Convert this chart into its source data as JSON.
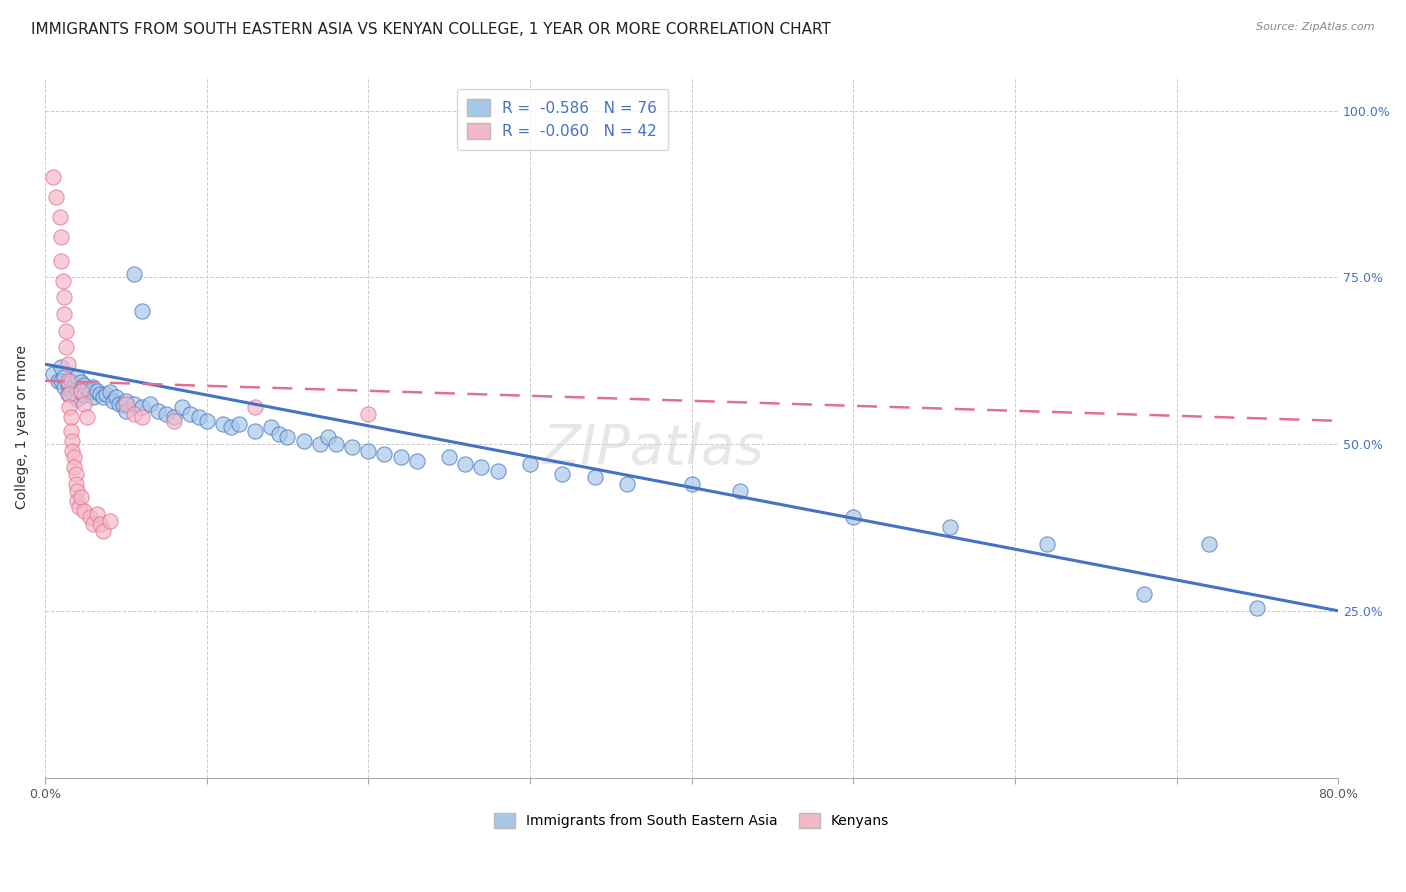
{
  "title": "IMMIGRANTS FROM SOUTH EASTERN ASIA VS KENYAN COLLEGE, 1 YEAR OR MORE CORRELATION CHART",
  "source": "Source: ZipAtlas.com",
  "ylabel": "College, 1 year or more",
  "ylabel_right_ticks": [
    "100.0%",
    "75.0%",
    "50.0%",
    "25.0%"
  ],
  "ylabel_right_vals": [
    1.0,
    0.75,
    0.5,
    0.25
  ],
  "xlim": [
    0.0,
    0.8
  ],
  "ylim": [
    0.0,
    1.05
  ],
  "legend_label1": "Immigrants from South Eastern Asia",
  "legend_label2": "Kenyans",
  "r1": -0.586,
  "n1": 76,
  "r2": -0.06,
  "n2": 42,
  "color_blue": "#a8c8e8",
  "color_blue_line": "#4472c4",
  "color_pink": "#f4b8c8",
  "color_pink_line": "#e07090",
  "watermark": "ZIPatlas",
  "blue_scatter": [
    [
      0.005,
      0.605
    ],
    [
      0.008,
      0.595
    ],
    [
      0.01,
      0.615
    ],
    [
      0.01,
      0.595
    ],
    [
      0.012,
      0.6
    ],
    [
      0.012,
      0.585
    ],
    [
      0.014,
      0.59
    ],
    [
      0.014,
      0.575
    ],
    [
      0.016,
      0.595
    ],
    [
      0.016,
      0.58
    ],
    [
      0.018,
      0.588
    ],
    [
      0.018,
      0.572
    ],
    [
      0.02,
      0.6
    ],
    [
      0.02,
      0.583
    ],
    [
      0.02,
      0.568
    ],
    [
      0.022,
      0.593
    ],
    [
      0.022,
      0.578
    ],
    [
      0.024,
      0.588
    ],
    [
      0.024,
      0.573
    ],
    [
      0.026,
      0.583
    ],
    [
      0.028,
      0.578
    ],
    [
      0.03,
      0.585
    ],
    [
      0.03,
      0.57
    ],
    [
      0.032,
      0.58
    ],
    [
      0.034,
      0.575
    ],
    [
      0.036,
      0.57
    ],
    [
      0.038,
      0.575
    ],
    [
      0.04,
      0.578
    ],
    [
      0.042,
      0.565
    ],
    [
      0.044,
      0.57
    ],
    [
      0.046,
      0.56
    ],
    [
      0.048,
      0.558
    ],
    [
      0.05,
      0.565
    ],
    [
      0.05,
      0.55
    ],
    [
      0.055,
      0.755
    ],
    [
      0.055,
      0.56
    ],
    [
      0.06,
      0.7
    ],
    [
      0.06,
      0.555
    ],
    [
      0.065,
      0.56
    ],
    [
      0.07,
      0.55
    ],
    [
      0.075,
      0.545
    ],
    [
      0.08,
      0.54
    ],
    [
      0.085,
      0.555
    ],
    [
      0.09,
      0.545
    ],
    [
      0.095,
      0.54
    ],
    [
      0.1,
      0.535
    ],
    [
      0.11,
      0.53
    ],
    [
      0.115,
      0.525
    ],
    [
      0.12,
      0.53
    ],
    [
      0.13,
      0.52
    ],
    [
      0.14,
      0.525
    ],
    [
      0.145,
      0.515
    ],
    [
      0.15,
      0.51
    ],
    [
      0.16,
      0.505
    ],
    [
      0.17,
      0.5
    ],
    [
      0.175,
      0.51
    ],
    [
      0.18,
      0.5
    ],
    [
      0.19,
      0.495
    ],
    [
      0.2,
      0.49
    ],
    [
      0.21,
      0.485
    ],
    [
      0.22,
      0.48
    ],
    [
      0.23,
      0.475
    ],
    [
      0.25,
      0.48
    ],
    [
      0.26,
      0.47
    ],
    [
      0.27,
      0.465
    ],
    [
      0.28,
      0.46
    ],
    [
      0.3,
      0.47
    ],
    [
      0.32,
      0.455
    ],
    [
      0.34,
      0.45
    ],
    [
      0.36,
      0.44
    ],
    [
      0.4,
      0.44
    ],
    [
      0.43,
      0.43
    ],
    [
      0.5,
      0.39
    ],
    [
      0.56,
      0.375
    ],
    [
      0.62,
      0.35
    ],
    [
      0.68,
      0.275
    ],
    [
      0.72,
      0.35
    ],
    [
      0.75,
      0.255
    ]
  ],
  "pink_scatter": [
    [
      0.005,
      0.9
    ],
    [
      0.007,
      0.87
    ],
    [
      0.009,
      0.84
    ],
    [
      0.01,
      0.81
    ],
    [
      0.01,
      0.775
    ],
    [
      0.011,
      0.745
    ],
    [
      0.012,
      0.72
    ],
    [
      0.012,
      0.695
    ],
    [
      0.013,
      0.67
    ],
    [
      0.013,
      0.645
    ],
    [
      0.014,
      0.62
    ],
    [
      0.014,
      0.595
    ],
    [
      0.015,
      0.575
    ],
    [
      0.015,
      0.555
    ],
    [
      0.016,
      0.54
    ],
    [
      0.016,
      0.52
    ],
    [
      0.017,
      0.505
    ],
    [
      0.017,
      0.49
    ],
    [
      0.018,
      0.48
    ],
    [
      0.018,
      0.465
    ],
    [
      0.019,
      0.455
    ],
    [
      0.019,
      0.44
    ],
    [
      0.02,
      0.43
    ],
    [
      0.02,
      0.415
    ],
    [
      0.021,
      0.405
    ],
    [
      0.022,
      0.58
    ],
    [
      0.022,
      0.42
    ],
    [
      0.024,
      0.56
    ],
    [
      0.024,
      0.4
    ],
    [
      0.026,
      0.54
    ],
    [
      0.028,
      0.39
    ],
    [
      0.03,
      0.38
    ],
    [
      0.032,
      0.395
    ],
    [
      0.034,
      0.38
    ],
    [
      0.036,
      0.37
    ],
    [
      0.04,
      0.385
    ],
    [
      0.05,
      0.56
    ],
    [
      0.055,
      0.545
    ],
    [
      0.06,
      0.54
    ],
    [
      0.08,
      0.535
    ],
    [
      0.13,
      0.555
    ],
    [
      0.2,
      0.545
    ]
  ],
  "blue_line_x": [
    0.0,
    0.8
  ],
  "blue_line_y_start": 0.62,
  "blue_line_y_end": 0.25,
  "pink_line_x": [
    0.0,
    0.8
  ],
  "pink_line_y_start": 0.595,
  "pink_line_y_end": 0.535,
  "grid_color": "#cccccc",
  "background_color": "#ffffff",
  "title_fontsize": 11,
  "axis_fontsize": 9,
  "watermark_fontsize": 40
}
